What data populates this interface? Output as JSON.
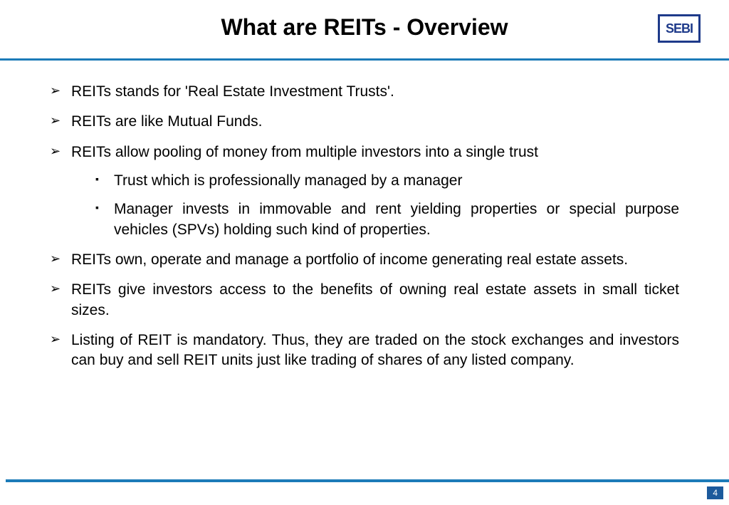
{
  "header": {
    "title": "What are REITs - Overview",
    "logo_text": "SEBI"
  },
  "bullets": [
    {
      "text": "REITs stands for 'Real Estate Investment Trusts'."
    },
    {
      "text": "REITs are like Mutual Funds."
    },
    {
      "text": "REITs allow pooling of money from multiple investors into a single trust",
      "subs": [
        "Trust which is professionally managed by a manager",
        "Manager invests in immovable and rent yielding properties or special purpose vehicles (SPVs) holding such kind of properties."
      ]
    },
    {
      "text": "REITs own, operate and manage a portfolio of income generating real estate assets."
    },
    {
      "text": "REITs give investors access to the benefits of owning real estate assets in small ticket sizes."
    },
    {
      "text": "Listing of REIT is mandatory. Thus, they are traded on the stock exchanges and investors can buy and sell REIT units just like trading of shares of any listed company."
    }
  ],
  "page_number": "4",
  "colors": {
    "accent": "#1c7bb8",
    "logo": "#1e3a8a",
    "page_bg": "#1c5a9c"
  }
}
